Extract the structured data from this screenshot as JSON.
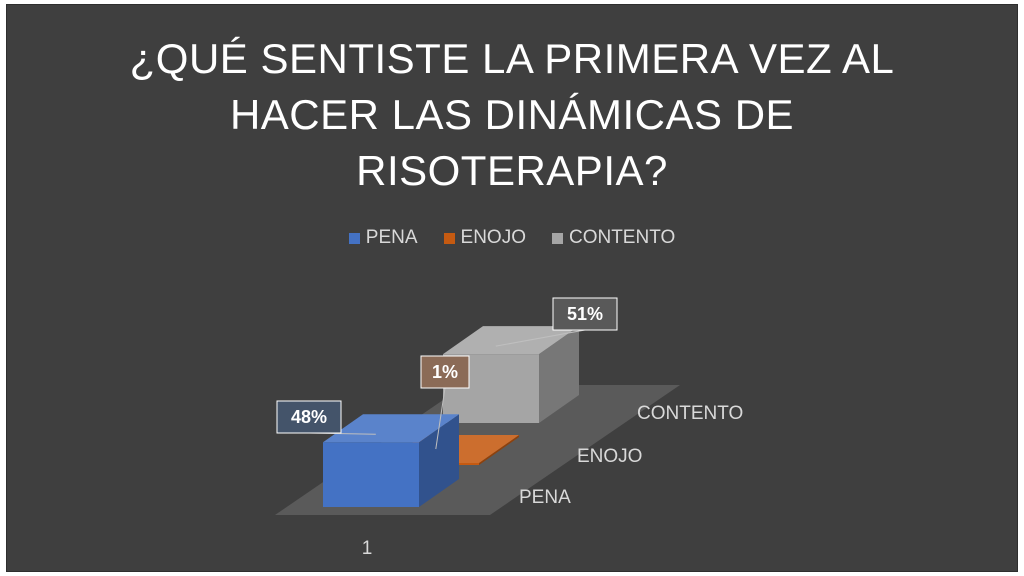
{
  "chart_data": {
    "type": "bar",
    "title": "¿QUÉ SENTISTE LA PRIMERA VEZ AL HACER LAS DINÁMICAS DE RISOTERAPIA?",
    "title_lines": [
      "¿QUÉ SENTISTE LA PRIMERA VEZ AL",
      "HACER LAS DINÁMICAS DE",
      "RISOTERAPIA?"
    ],
    "categories": [
      "1"
    ],
    "series": [
      {
        "name": "PENA",
        "values": [
          48
        ],
        "label": "48%",
        "color": "#4472c4"
      },
      {
        "name": "ENOJO",
        "values": [
          1
        ],
        "label": "1%",
        "color": "#c55a11"
      },
      {
        "name": "CONTENTO",
        "values": [
          51
        ],
        "label": "51%",
        "color": "#a5a5a5"
      }
    ],
    "depth_labels": [
      "PENA",
      "ENOJO",
      "CONTENTO"
    ],
    "unit": "%",
    "legend": "top-center",
    "style": "3d-bar"
  }
}
